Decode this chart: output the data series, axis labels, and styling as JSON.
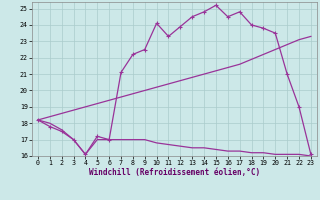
{
  "xlabel": "Windchill (Refroidissement éolien,°C)",
  "background_color": "#cce8e8",
  "grid_color": "#aacccc",
  "line_color": "#993399",
  "xlim": [
    -0.5,
    23.5
  ],
  "ylim": [
    16,
    25.4
  ],
  "xticks": [
    0,
    1,
    2,
    3,
    4,
    5,
    6,
    7,
    8,
    9,
    10,
    11,
    12,
    13,
    14,
    15,
    16,
    17,
    18,
    19,
    20,
    21,
    22,
    23
  ],
  "yticks": [
    16,
    17,
    18,
    19,
    20,
    21,
    22,
    23,
    24,
    25
  ],
  "line1_x": [
    0,
    1,
    2,
    3,
    4,
    5,
    6,
    7,
    8,
    9,
    10,
    11,
    12,
    13,
    14,
    15,
    16,
    17,
    18,
    19,
    20,
    21,
    22,
    23
  ],
  "line1_y": [
    18.2,
    17.8,
    17.5,
    17.0,
    16.1,
    17.2,
    17.0,
    21.1,
    22.2,
    22.5,
    24.1,
    23.3,
    23.9,
    24.5,
    24.8,
    25.2,
    24.5,
    24.8,
    24.0,
    23.8,
    23.5,
    21.0,
    19.0,
    16.1
  ],
  "line2_x": [
    0,
    1,
    2,
    3,
    4,
    5,
    6,
    7,
    8,
    9,
    10,
    11,
    12,
    13,
    14,
    15,
    16,
    17,
    18,
    19,
    20,
    21,
    22,
    23
  ],
  "line2_y": [
    18.2,
    18.0,
    17.6,
    17.0,
    16.1,
    17.0,
    17.0,
    17.0,
    17.0,
    17.0,
    16.8,
    16.7,
    16.6,
    16.5,
    16.5,
    16.4,
    16.3,
    16.3,
    16.2,
    16.2,
    16.1,
    16.1,
    16.1,
    16.0
  ],
  "line3_x": [
    0,
    1,
    2,
    3,
    4,
    5,
    6,
    7,
    8,
    9,
    10,
    11,
    12,
    13,
    14,
    15,
    16,
    17,
    18,
    19,
    20,
    21,
    22,
    23
  ],
  "line3_y": [
    18.2,
    18.4,
    18.6,
    18.8,
    19.0,
    19.2,
    19.4,
    19.6,
    19.8,
    20.0,
    20.2,
    20.4,
    20.6,
    20.8,
    21.0,
    21.2,
    21.4,
    21.6,
    21.9,
    22.2,
    22.5,
    22.8,
    23.1,
    23.3
  ],
  "xlabel_color": "#660066",
  "xlabel_fontsize": 5.5,
  "tick_fontsize": 4.8,
  "linewidth": 0.9,
  "marker_size": 2.5
}
